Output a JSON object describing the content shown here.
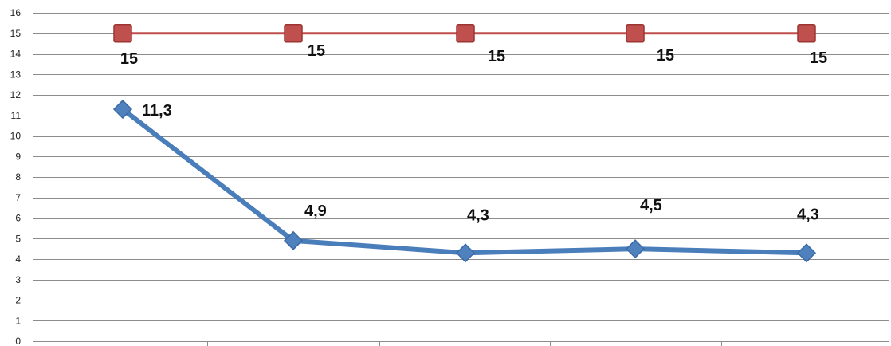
{
  "chart_data": {
    "type": "line",
    "title": "",
    "xlabel": "",
    "ylabel": "",
    "ylim": [
      0,
      16
    ],
    "yticks": [
      0,
      1,
      2,
      3,
      4,
      5,
      6,
      7,
      8,
      9,
      10,
      11,
      12,
      13,
      14,
      15,
      16
    ],
    "grid": true,
    "legend": "none",
    "x": [
      1,
      2,
      3,
      4,
      5
    ],
    "series": [
      {
        "values": [
          11.3,
          4.9,
          4.3,
          4.5,
          4.3
        ],
        "labels": [
          "11,3",
          "4,9",
          "4,3",
          "4,5",
          "4,3"
        ],
        "color": "#4a7ebb",
        "marker": "diamond"
      },
      {
        "values": [
          15,
          15,
          15,
          15,
          15
        ],
        "labels": [
          "15",
          "15",
          "15",
          "15",
          "15"
        ],
        "color": "#c0504d",
        "marker": "square"
      }
    ]
  }
}
